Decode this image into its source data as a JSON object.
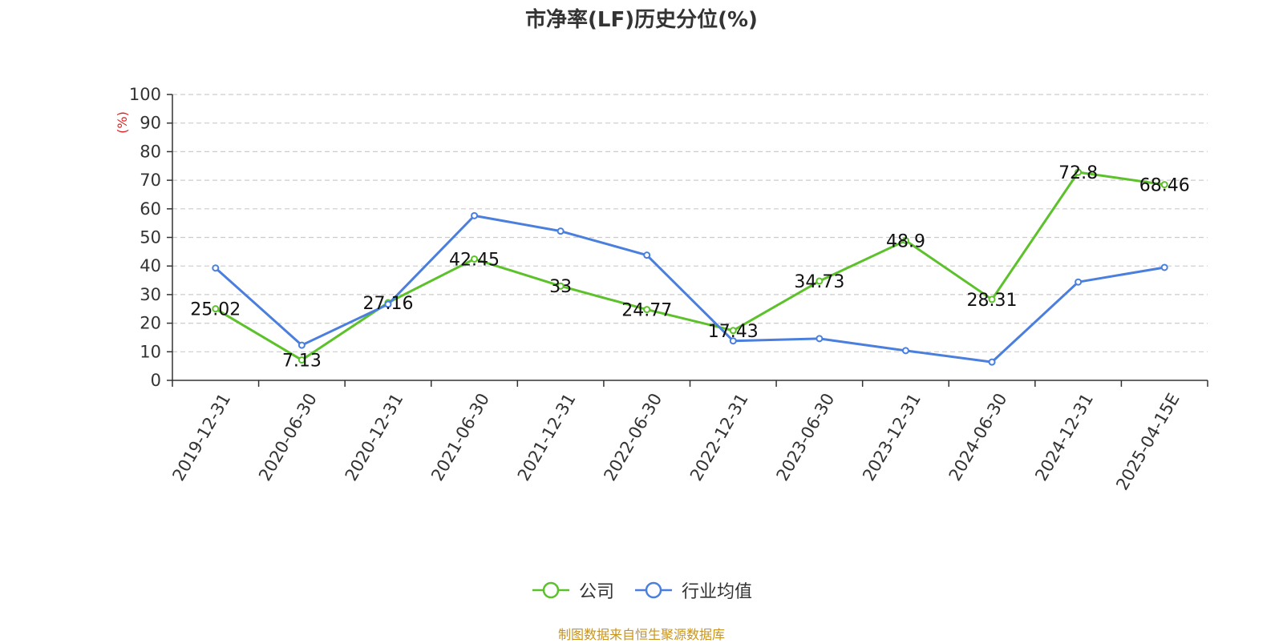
{
  "chart_data": {
    "type": "line",
    "title": "市净率(LF)历史分位(%)",
    "ylabel": "(%)",
    "xlabel": "",
    "ylim": [
      0,
      100
    ],
    "yticks": [
      0,
      10,
      20,
      30,
      40,
      50,
      60,
      70,
      80,
      90,
      100
    ],
    "grid": true,
    "legend_position": "bottom",
    "categories": [
      "2019-12-31",
      "2020-06-30",
      "2020-12-31",
      "2021-06-30",
      "2021-12-31",
      "2022-06-30",
      "2022-12-31",
      "2023-06-30",
      "2023-12-31",
      "2024-06-30",
      "2024-12-31",
      "2025-04-15E"
    ],
    "series": [
      {
        "name": "公司",
        "color": "#5cc12a",
        "values": [
          25.02,
          7.13,
          27.16,
          42.45,
          33,
          24.77,
          17.43,
          34.73,
          48.9,
          28.31,
          72.8,
          68.46
        ],
        "data_labels": [
          "25.02",
          "7.13",
          "27.16",
          "42.45",
          "33",
          "24.77",
          "17.43",
          "34.73",
          "48.9",
          "28.31",
          "72.8",
          "68.46"
        ]
      },
      {
        "name": "行业均值",
        "color": "#4b7fde",
        "values": [
          39.3,
          12.3,
          26.6,
          57.6,
          52.2,
          43.8,
          13.8,
          14.6,
          10.4,
          6.4,
          34.4,
          39.5
        ]
      }
    ]
  },
  "source_note": "制图数据来自恒生聚源数据库",
  "colors": {
    "ylabel": "#e02020",
    "axis": "#333333",
    "grid": "#cccccc",
    "source_note": "#c8941e"
  }
}
